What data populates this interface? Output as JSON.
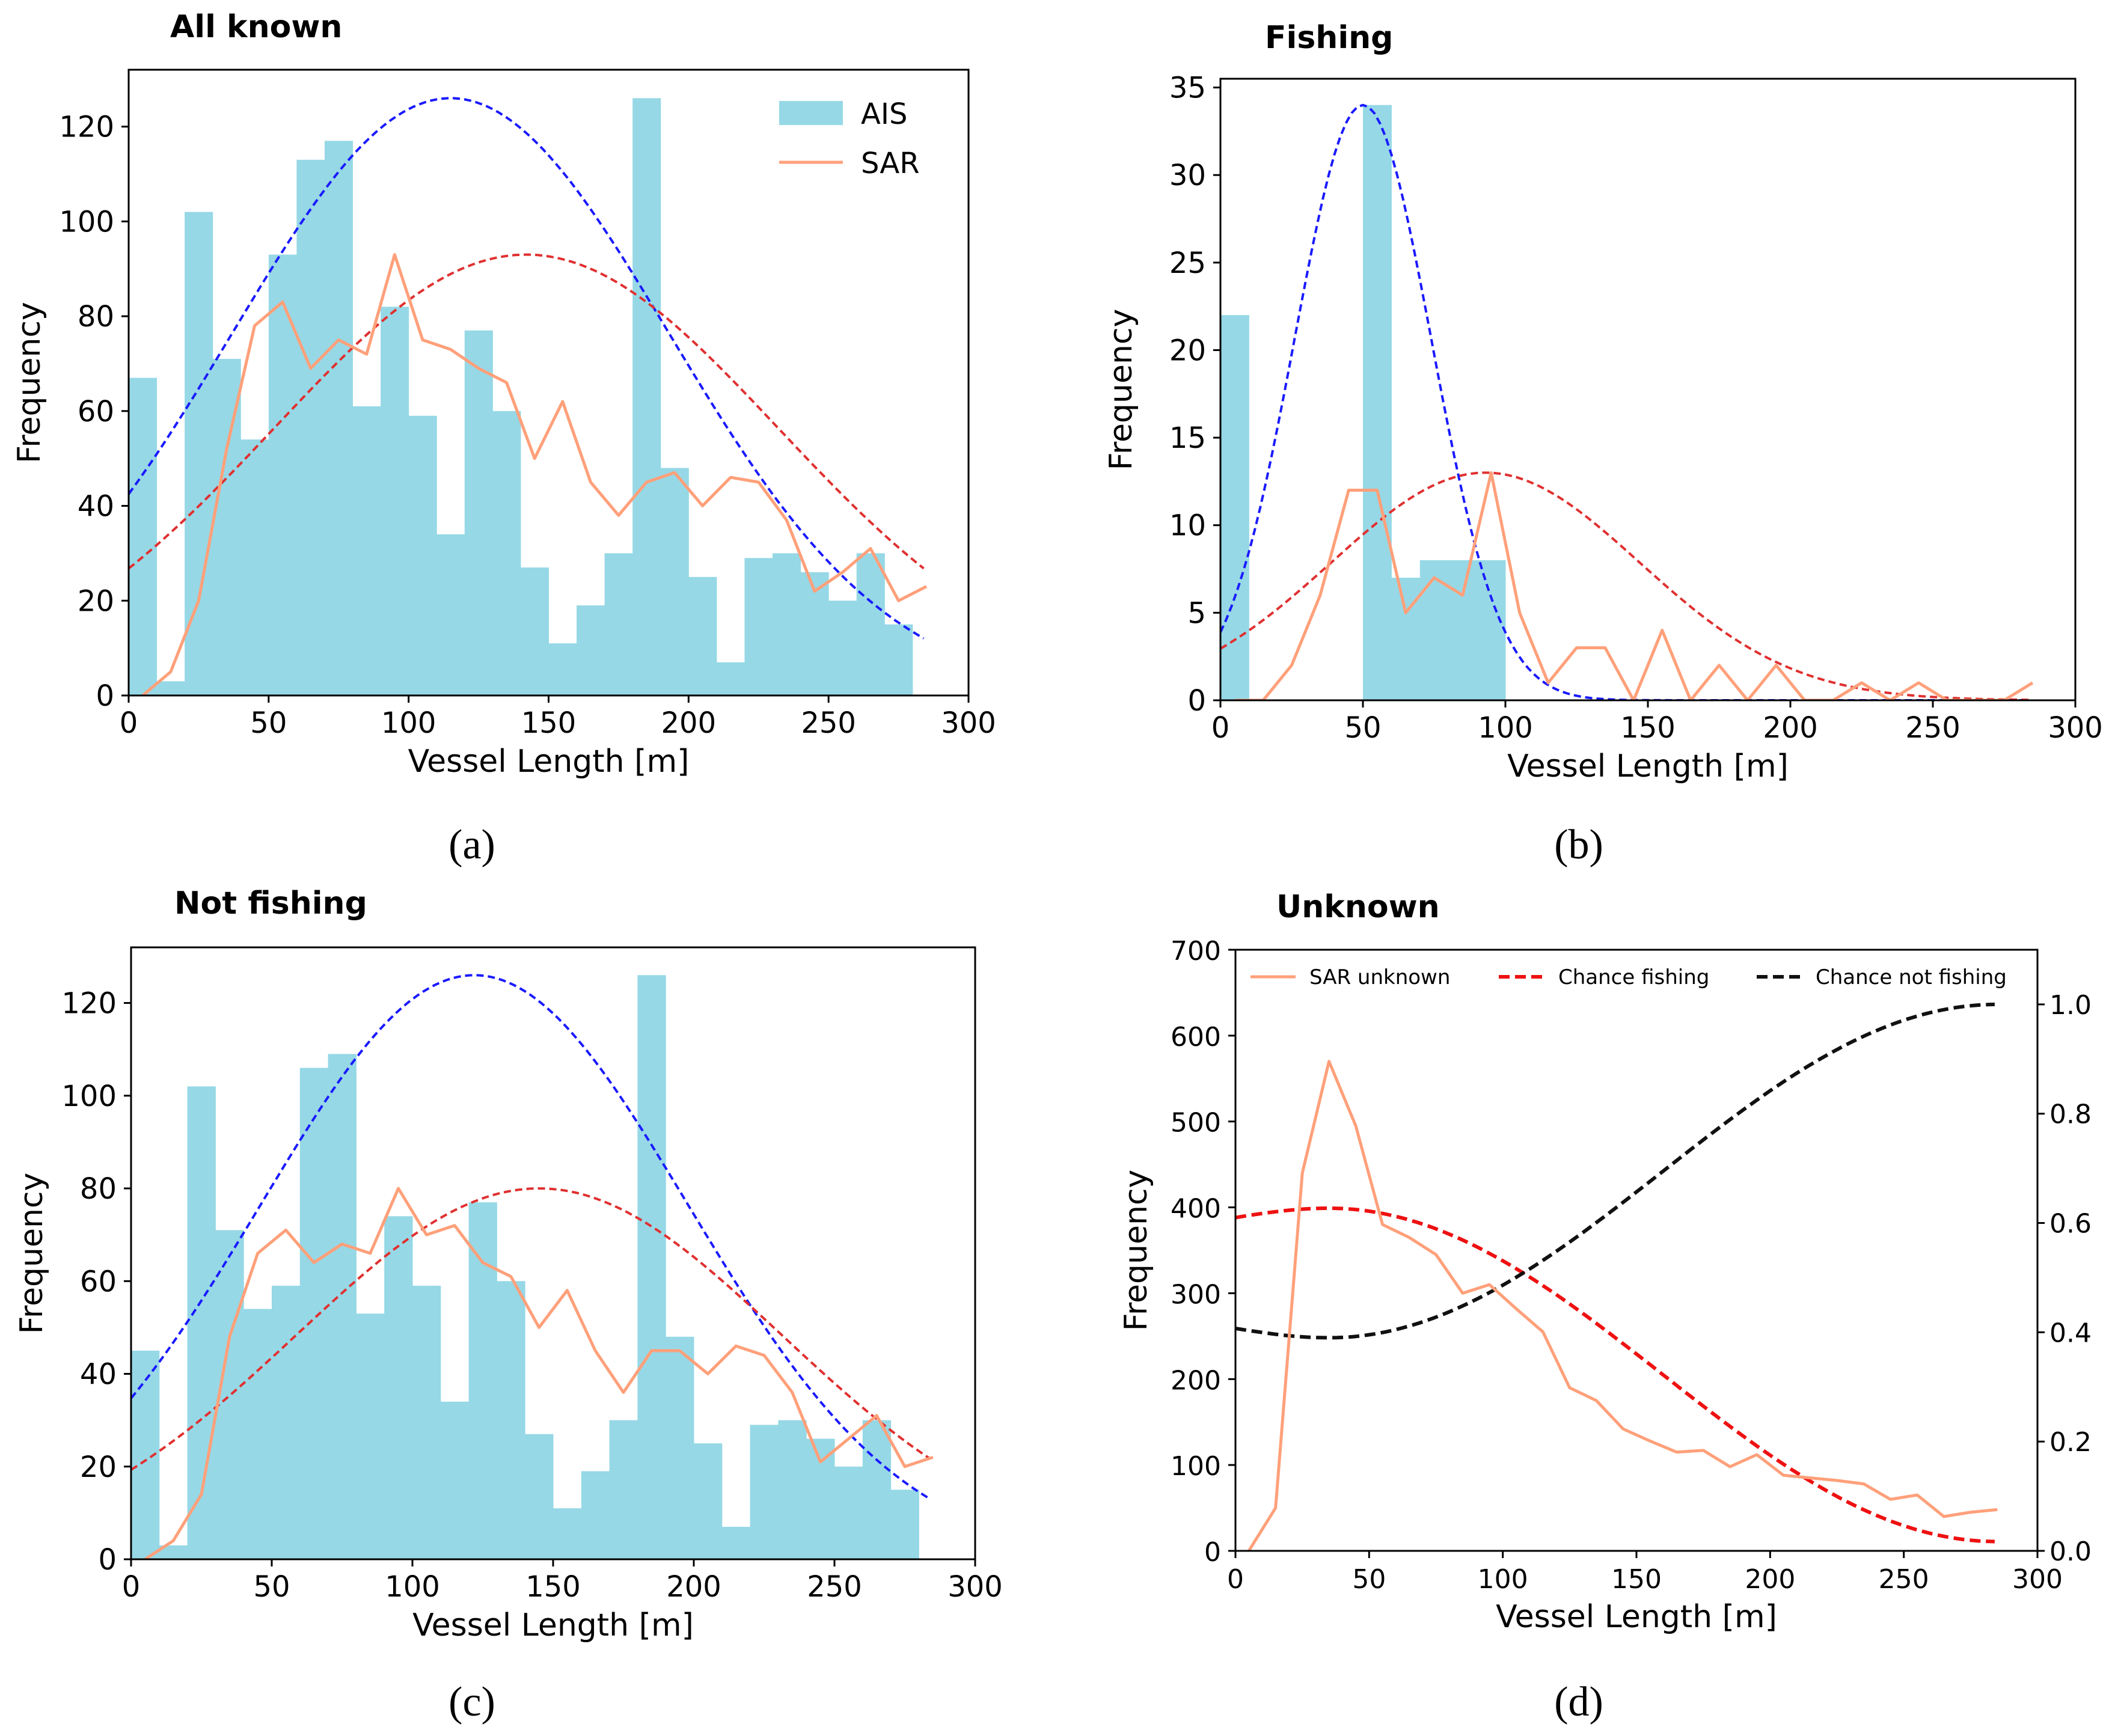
{
  "chart_data": [
    {
      "id": "a",
      "type": "bar",
      "title": "All known",
      "panel_label": "(a)",
      "xlabel": "Vessel Length [m]",
      "ylabel": "Frequency",
      "xlim": [
        0,
        300
      ],
      "ylim": [
        0,
        132
      ],
      "xticks": [
        "0",
        "50",
        "100",
        "150",
        "200",
        "250",
        "300"
      ],
      "yticks": [
        "0",
        "20",
        "40",
        "60",
        "80",
        "100",
        "120"
      ],
      "xtick_values": [
        0,
        50,
        100,
        150,
        200,
        250,
        300
      ],
      "ytick_values": [
        0,
        20,
        40,
        60,
        80,
        100,
        120
      ],
      "legend": [
        "AIS",
        "SAR"
      ],
      "bin_width": 10,
      "bin_starts": [
        0,
        10,
        20,
        30,
        40,
        50,
        60,
        70,
        80,
        90,
        100,
        110,
        120,
        130,
        140,
        150,
        160,
        170,
        180,
        190,
        200,
        210,
        220,
        230,
        240,
        250,
        260,
        270
      ],
      "ais_hist": [
        67,
        3,
        102,
        71,
        54,
        93,
        113,
        117,
        61,
        82,
        59,
        34,
        77,
        60,
        27,
        11,
        19,
        30,
        126,
        48,
        25,
        7,
        29,
        30,
        26,
        20,
        30,
        15
      ],
      "sar_x": [
        5,
        15,
        25,
        35,
        45,
        55,
        65,
        75,
        85,
        95,
        105,
        115,
        125,
        135,
        145,
        155,
        165,
        175,
        185,
        195,
        205,
        215,
        225,
        235,
        245,
        255,
        265,
        275,
        285
      ],
      "sar_y": [
        0,
        5,
        20,
        52,
        78,
        83,
        69,
        75,
        72,
        93,
        75,
        73,
        69,
        66,
        50,
        62,
        45,
        38,
        45,
        47,
        40,
        46,
        45,
        37,
        22,
        26,
        31,
        20,
        23
      ],
      "fit_ais": {
        "mean": 115,
        "sd": 78,
        "peak": 126,
        "color": "#1a1aff"
      },
      "fit_sar": {
        "mean": 142,
        "sd": 90,
        "peak": 93,
        "color": "#e03030"
      }
    },
    {
      "id": "b",
      "type": "bar",
      "title": "Fishing",
      "panel_label": "(b)",
      "xlabel": "Vessel Length [m]",
      "ylabel": "Frequency",
      "xlim": [
        0,
        300
      ],
      "ylim": [
        0,
        35.5
      ],
      "xticks": [
        "0",
        "50",
        "100",
        "150",
        "200",
        "250",
        "300"
      ],
      "yticks": [
        "0",
        "5",
        "10",
        "15",
        "20",
        "25",
        "30",
        "35"
      ],
      "xtick_values": [
        0,
        50,
        100,
        150,
        200,
        250,
        300
      ],
      "ytick_values": [
        0,
        5,
        10,
        15,
        20,
        25,
        30,
        35
      ],
      "bin_width": 10,
      "bin_starts": [
        0,
        10,
        20,
        30,
        40,
        50,
        60,
        70,
        80,
        90
      ],
      "ais_hist": [
        22,
        0,
        0,
        0,
        0,
        34,
        7,
        8,
        8,
        8
      ],
      "sar_x": [
        5,
        15,
        25,
        35,
        45,
        55,
        65,
        75,
        85,
        95,
        105,
        115,
        125,
        135,
        145,
        155,
        165,
        175,
        185,
        195,
        205,
        215,
        225,
        235,
        245,
        255,
        265,
        275,
        285
      ],
      "sar_y": [
        0,
        0,
        2,
        6,
        12,
        12,
        5,
        7,
        6,
        13,
        5,
        1,
        3,
        3,
        0,
        4,
        0,
        2,
        0,
        2,
        0,
        0,
        1,
        0,
        1,
        0,
        0,
        0,
        1
      ],
      "fit_ais": {
        "mean": 50,
        "sd": 24,
        "peak": 34,
        "color": "#1a1aff"
      },
      "fit_sar": {
        "mean": 93,
        "sd": 54,
        "peak": 13,
        "color": "#e03030"
      }
    },
    {
      "id": "c",
      "type": "bar",
      "title": "Not fishing",
      "panel_label": "(c)",
      "xlabel": "Vessel Length [m]",
      "ylabel": "Frequency",
      "xlim": [
        0,
        300
      ],
      "ylim": [
        0,
        132
      ],
      "xticks": [
        "0",
        "50",
        "100",
        "150",
        "200",
        "250",
        "300"
      ],
      "yticks": [
        "0",
        "20",
        "40",
        "60",
        "80",
        "100",
        "120"
      ],
      "xtick_values": [
        0,
        50,
        100,
        150,
        200,
        250,
        300
      ],
      "ytick_values": [
        0,
        20,
        40,
        60,
        80,
        100,
        120
      ],
      "bin_width": 10,
      "bin_starts": [
        0,
        10,
        20,
        30,
        40,
        50,
        60,
        70,
        80,
        90,
        100,
        110,
        120,
        130,
        140,
        150,
        160,
        170,
        180,
        190,
        200,
        210,
        220,
        230,
        240,
        250,
        260,
        270
      ],
      "ais_hist": [
        45,
        3,
        102,
        71,
        54,
        59,
        106,
        109,
        53,
        74,
        59,
        34,
        77,
        60,
        27,
        11,
        19,
        30,
        126,
        48,
        25,
        7,
        29,
        30,
        26,
        20,
        30,
        15
      ],
      "sar_x": [
        5,
        15,
        25,
        35,
        45,
        55,
        65,
        75,
        85,
        95,
        105,
        115,
        125,
        135,
        145,
        155,
        165,
        175,
        185,
        195,
        205,
        215,
        225,
        235,
        245,
        255,
        265,
        275,
        285
      ],
      "sar_y": [
        0,
        4,
        14,
        48,
        66,
        71,
        64,
        68,
        66,
        80,
        70,
        72,
        64,
        61,
        50,
        58,
        45,
        36,
        45,
        45,
        40,
        46,
        44,
        36,
        21,
        26,
        31,
        20,
        22
      ],
      "fit_ais": {
        "mean": 122,
        "sd": 76,
        "peak": 126,
        "color": "#1a1aff"
      },
      "fit_sar": {
        "mean": 145,
        "sd": 86,
        "peak": 80,
        "color": "#e03030"
      }
    },
    {
      "id": "d",
      "type": "line",
      "title": "Unknown",
      "panel_label": "(d)",
      "xlabel": "Vessel Length [m]",
      "ylabel": "Frequency",
      "xlim": [
        0,
        300
      ],
      "ylim": [
        0,
        700
      ],
      "y2lim": [
        0,
        1.1
      ],
      "xticks": [
        "0",
        "50",
        "100",
        "150",
        "200",
        "250",
        "300"
      ],
      "yticks": [
        "0",
        "100",
        "200",
        "300",
        "400",
        "500",
        "600",
        "700"
      ],
      "y2ticks": [
        "0.0",
        "0.2",
        "0.4",
        "0.6",
        "0.8",
        "1.0"
      ],
      "xtick_values": [
        0,
        50,
        100,
        150,
        200,
        250,
        300
      ],
      "ytick_values": [
        0,
        100,
        200,
        300,
        400,
        500,
        600,
        700
      ],
      "y2tick_values": [
        0,
        0.2,
        0.4,
        0.6,
        0.8,
        1.0
      ],
      "legend": [
        "SAR unknown",
        "Chance fishing",
        "Chance not fishing"
      ],
      "sar_x": [
        5,
        15,
        25,
        35,
        45,
        55,
        65,
        75,
        85,
        95,
        105,
        115,
        125,
        135,
        145,
        155,
        165,
        175,
        185,
        195,
        205,
        215,
        225,
        235,
        245,
        255,
        265,
        275,
        285
      ],
      "sar_y": [
        0,
        50,
        440,
        570,
        495,
        380,
        365,
        345,
        300,
        310,
        282,
        255,
        190,
        175,
        142,
        128,
        115,
        117,
        98,
        112,
        88,
        85,
        82,
        78,
        60,
        65,
        40,
        45,
        48
      ],
      "chance_fishing": {
        "start": 0.61,
        "peak_x": 35,
        "peak": 0.627,
        "end": 0.017,
        "color": "#ee1111"
      },
      "chance_not_fishing": {
        "start": 0.407,
        "min_x": 35,
        "min": 0.39,
        "end": 1.0,
        "color": "#111111"
      }
    }
  ]
}
